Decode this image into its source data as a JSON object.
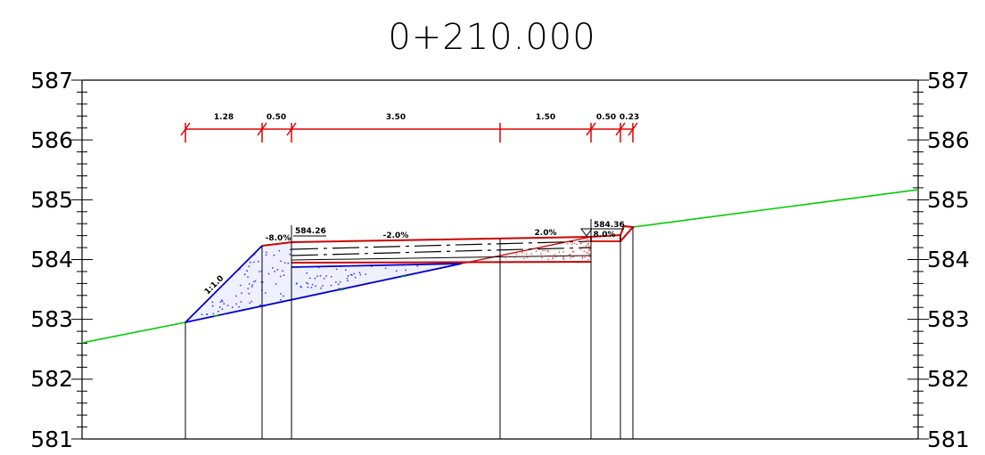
{
  "title": "0+210.000",
  "elevations": [
    "587",
    "586",
    "585",
    "584",
    "583",
    "582",
    "581"
  ],
  "dimensions": [
    "1.28",
    "0.50",
    "3.50",
    "1.50",
    "0.50",
    "0.23"
  ],
  "annotations": {
    "slope_ratio": "1:1.0",
    "shoulder_left_grade": "-8.0%",
    "left_elevation": "584.26",
    "lane_left_grade": "-2.0%",
    "lane_right_grade": "2.0%",
    "right_elevation": "584.36",
    "curb_grade": "8.0%"
  },
  "colors": {
    "ground": "#00cc00",
    "dimension": "#e00000",
    "pavement": "#cc0000",
    "fill": "#0000cc",
    "frame": "#000000"
  }
}
